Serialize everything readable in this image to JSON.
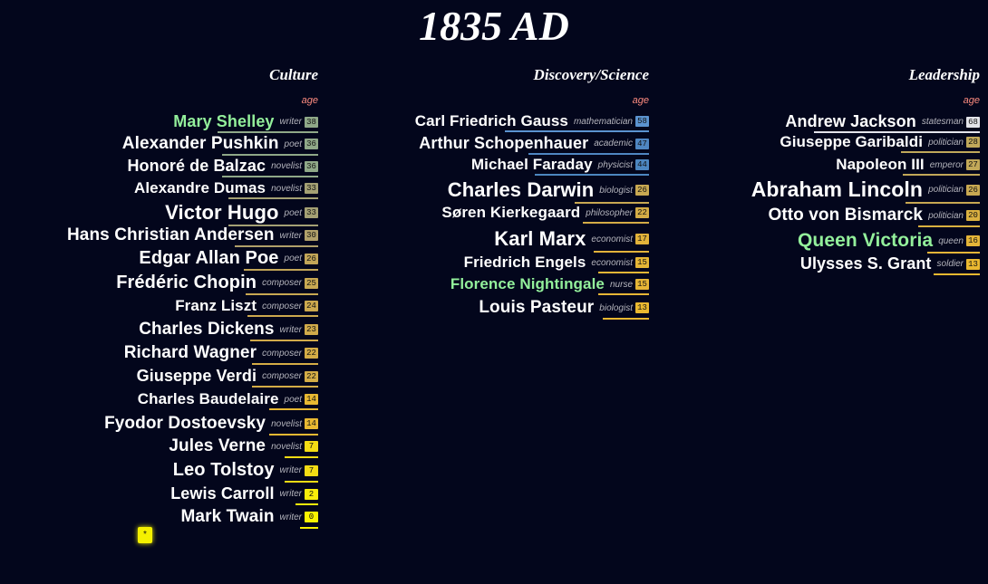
{
  "title": "1835 AD",
  "age_label": "age",
  "columns": [
    {
      "id": "culture",
      "title": "Culture",
      "people": [
        {
          "name": "Mary Shelley",
          "role": "writer",
          "age": "38",
          "highlight": true,
          "badge_color": "#8fa888"
        },
        {
          "name": "Alexander Pushkin",
          "role": "poet",
          "age": "36",
          "highlight": false,
          "badge_color": "#8fa888"
        },
        {
          "name": "Honoré de Balzac",
          "role": "novelist",
          "age": "36",
          "highlight": false,
          "badge_color": "#8fa888"
        },
        {
          "name": "Alexandre Dumas",
          "role": "novelist",
          "age": "33",
          "highlight": false,
          "badge_color": "#a4a074"
        },
        {
          "name": "Victor Hugo",
          "role": "poet",
          "age": "33",
          "highlight": false,
          "badge_color": "#a4a074"
        },
        {
          "name": "Hans Christian Andersen",
          "role": "writer",
          "age": "30",
          "highlight": false,
          "badge_color": "#b0a06a"
        },
        {
          "name": "Edgar Allan Poe",
          "role": "poet",
          "age": "26",
          "highlight": false,
          "badge_color": "#c2a558"
        },
        {
          "name": "Frédéric Chopin",
          "role": "composer",
          "age": "25",
          "highlight": false,
          "badge_color": "#c8a852"
        },
        {
          "name": "Franz Liszt",
          "role": "composer",
          "age": "24",
          "highlight": false,
          "badge_color": "#cca84e"
        },
        {
          "name": "Charles Dickens",
          "role": "writer",
          "age": "23",
          "highlight": false,
          "badge_color": "#d0aa4a"
        },
        {
          "name": "Richard Wagner",
          "role": "composer",
          "age": "22",
          "highlight": false,
          "badge_color": "#d4ac46"
        },
        {
          "name": "Giuseppe Verdi",
          "role": "composer",
          "age": "22",
          "highlight": false,
          "badge_color": "#d4ac46"
        },
        {
          "name": "Charles Baudelaire",
          "role": "poet",
          "age": "14",
          "highlight": false,
          "badge_color": "#e8b832"
        },
        {
          "name": "Fyodor Dostoevsky",
          "role": "novelist",
          "age": "14",
          "highlight": false,
          "badge_color": "#e8b832"
        },
        {
          "name": "Jules Verne",
          "role": "novelist",
          "age": "7",
          "highlight": false,
          "badge_color": "#f4dc14"
        },
        {
          "name": "Leo Tolstoy",
          "role": "writer",
          "age": "7",
          "highlight": false,
          "badge_color": "#f4dc14"
        },
        {
          "name": "Lewis Carroll",
          "role": "writer",
          "age": "2",
          "highlight": false,
          "badge_color": "#f8ec0a"
        },
        {
          "name": "Mark Twain",
          "role": "writer",
          "age": "0",
          "highlight": false,
          "badge_color": "#faf200"
        }
      ]
    },
    {
      "id": "science",
      "title": "Discovery/Science",
      "people": [
        {
          "name": "Carl Friedrich Gauss",
          "role": "mathematician",
          "age": "58",
          "highlight": false,
          "badge_color": "#5b93d0"
        },
        {
          "name": "Arthur Schopenhauer",
          "role": "academic",
          "age": "47",
          "highlight": false,
          "badge_color": "#4f86c2"
        },
        {
          "name": "Michael Faraday",
          "role": "physicist",
          "age": "44",
          "highlight": false,
          "badge_color": "#4c86c0"
        },
        {
          "name": "Charles Darwin",
          "role": "biologist",
          "age": "26",
          "highlight": false,
          "badge_color": "#c8a852"
        },
        {
          "name": "Søren Kierkegaard",
          "role": "philosopher",
          "age": "22",
          "highlight": false,
          "badge_color": "#d4ac46"
        },
        {
          "name": "Karl Marx",
          "role": "economist",
          "age": "17",
          "highlight": false,
          "badge_color": "#e2b23a"
        },
        {
          "name": "Friedrich Engels",
          "role": "economist",
          "age": "15",
          "highlight": false,
          "badge_color": "#e6b636"
        },
        {
          "name": "Florence Nightingale",
          "role": "nurse",
          "age": "15",
          "highlight": true,
          "badge_color": "#e6b636"
        },
        {
          "name": "Louis Pasteur",
          "role": "biologist",
          "age": "13",
          "highlight": false,
          "badge_color": "#eab830"
        }
      ]
    },
    {
      "id": "leadership",
      "title": "Leadership",
      "people": [
        {
          "name": "Andrew Jackson",
          "role": "statesman",
          "age": "68",
          "highlight": false,
          "badge_color": "#e4e4ea"
        },
        {
          "name": "Giuseppe Garibaldi",
          "role": "politician",
          "age": "28",
          "highlight": false,
          "badge_color": "#c0a85a"
        },
        {
          "name": "Napoleon III",
          "role": "emperor",
          "age": "27",
          "highlight": false,
          "badge_color": "#c2a858"
        },
        {
          "name": "Abraham Lincoln",
          "role": "politician",
          "age": "26",
          "highlight": false,
          "badge_color": "#c8a852"
        },
        {
          "name": "Otto von Bismarck",
          "role": "politician",
          "age": "20",
          "highlight": false,
          "badge_color": "#dab040"
        },
        {
          "name": "Queen Victoria",
          "role": "queen",
          "age": "16",
          "highlight": true,
          "badge_color": "#e4b438"
        },
        {
          "name": "Ulysses S. Grant",
          "role": "soldier",
          "age": "13",
          "highlight": false,
          "badge_color": "#eab830"
        }
      ]
    }
  ],
  "new_marker": "*"
}
